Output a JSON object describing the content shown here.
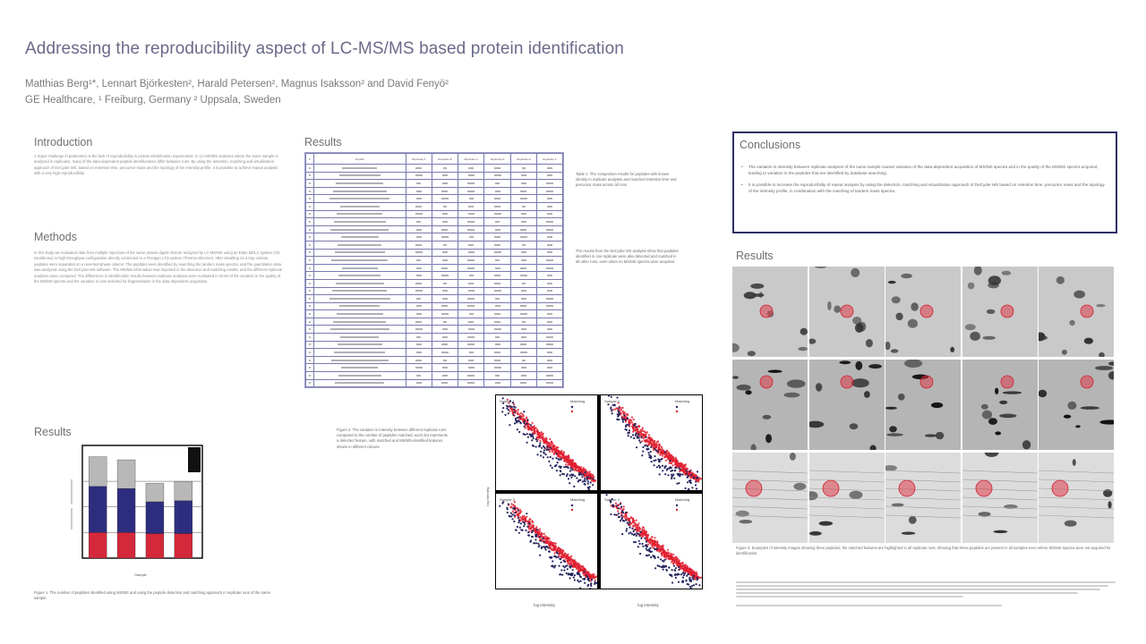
{
  "title": "Addressing the reproducibility aspect of LC-MS/MS based protein identification",
  "authors": "Matthias Berg¹*, Lennart Björkesten², Harald Petersen², Magnus Isaksson² and David Fenyö²",
  "affiliation": "GE Healthcare, ¹ Freiburg, Germany ² Uppsala, Sweden",
  "sections": {
    "introduction": {
      "heading": "Introduction",
      "text": "A major challenge in proteomics is the lack of reproducibility in protein identification experiments. In LC-MS/MS analyses where the same sample is analyzed in replicates, many of the data-dependent peptide identifications differ between runs. By using the detection, matching and visualization approach of DeCyder MS, based on retention time, precursor mass and the topology of the intensity profile, it is possible to achieve repeat analysis with a very high reproducibility."
    },
    "methods": {
      "heading": "Methods",
      "text": "In this study we evaluated data from multiple injections of the same protein digest mixture analyzed by LC-MS/MS using an Ettan MDLC system (GE Healthcare) in high throughput configuration directly connected to a Finnigan LTQ system (Thermo Electron). After desalting on a trap column, peptides were separated on a reversed-phase column. The peptides were identified by searching the tandem mass spectra, and the quantitative data was analyzed using the DeCyder MS software. The MS/MS information was imported to the detection and matching results, and the different replicate analyses were compared. The differences in identification results between replicate analyses were evaluated in terms of the variation in the quality of the MS/MS spectra and the variation in ions selected for fragmentation in the data dependent acquisition."
    },
    "results_bar": {
      "heading": "Results",
      "caption": "Figure 1. The number of peptides identified using MS/MS and using the peptide detection and matching approach in replicate runs of the same sample."
    },
    "results_table": {
      "heading": "Results",
      "table_headers": [
        "#",
        "Peptide",
        "Replicate A",
        "Replicate B",
        "Replicate C",
        "Replicate D",
        "Replicate E",
        "Replicate F"
      ],
      "caption_1": "Table 1. The comparison results for peptides with known identity in replicate analyses and matched retention time and precursor mass across all runs.",
      "caption_2": "The results from the DeCyder MS analysis show that peptides identified in one replicate were also detected and matched in all other runs, even when no MS/MS spectra were acquired."
    },
    "scatter": {
      "caption": "Figure 2. The variation in intensity between different replicate runs compared to the number of peptides matched; each dot represents a detected feature, with matched and MS/MS-identified features shown in different colours.",
      "xlabel": "log intensity",
      "ylabel": "log intensity",
      "panels": [
        {
          "title": "Sample 1",
          "legend": "Matching"
        },
        {
          "title": "Sample 2",
          "legend": "Matching"
        },
        {
          "title": "Sample 3",
          "legend": "Matching"
        },
        {
          "title": "Sample 4",
          "legend": "Matching"
        }
      ]
    },
    "conclusions": {
      "heading": "Conclusions",
      "bullets": [
        "The variation in intensity between replicate analyses of the same sample causes variation of the data-dependent acquisition of MS/MS spectra and in the quality of the MS/MS spectra acquired, leading to variation in the peptides that are identified by database searching.",
        "It is possible to increase the reproducibility of repeat analysis by using the detection, matching and visualization approach of DeCyder MS based on retention time, precursor mass and the topology of the intensity profile, in combination with the matching of tandem mass spectra."
      ]
    },
    "results_gel": {
      "heading": "Results",
      "caption": "Figure 3. Examples of intensity images showing three peptides; the matched features are highlighted in all replicate runs, showing that these peptides are present in all samples even where MS/MS spectra were not acquired for identification."
    }
  },
  "colors": {
    "title": "#6a6a8a",
    "conclusion_border": "#2e2e66",
    "bar_red": "#d4283b",
    "bar_blue": "#2d2d80",
    "bar_grey": "#b8b8b8",
    "scatter_red": "#e02030",
    "scatter_navy": "#262660"
  },
  "chart_data": [
    {
      "type": "bar",
      "categories": [
        "",
        "",
        "",
        ""
      ],
      "series": [
        {
          "values": [
            25,
            25,
            24,
            24
          ]
        },
        {
          "values": [
            45,
            43,
            31,
            32
          ]
        },
        {
          "values": [
            29,
            28,
            18,
            19
          ]
        }
      ],
      "stacked": true,
      "title": "",
      "xlabel": "Sample",
      "ylabel": "",
      "ylim": [
        0,
        110
      ],
      "grid": true
    },
    {
      "type": "scatter",
      "title": "",
      "xlabel": "log intensity",
      "ylabel": "log intensity",
      "panels": 4,
      "grid": false
    }
  ]
}
